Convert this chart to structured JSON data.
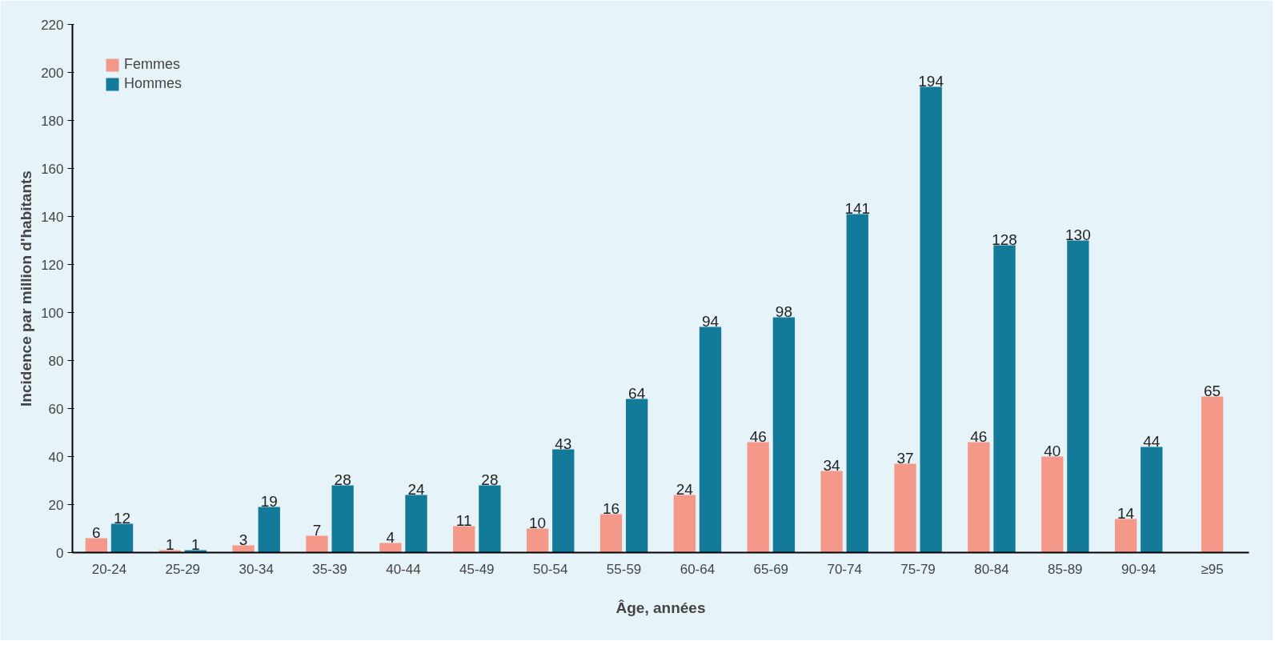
{
  "chart_data": {
    "type": "bar",
    "xlabel": "Âge, années",
    "ylabel": "Incidence par million d'habitants",
    "categories": [
      "20-24",
      "25-29",
      "30-34",
      "35-39",
      "40-44",
      "45-49",
      "50-54",
      "55-59",
      "60-64",
      "65-69",
      "70-74",
      "75-79",
      "80-84",
      "85-89",
      "90-94",
      "≥95"
    ],
    "series": [
      {
        "name": "Femmes",
        "color": "#f4998a",
        "values": [
          6,
          1,
          3,
          7,
          4,
          11,
          10,
          16,
          24,
          46,
          34,
          37,
          46,
          40,
          14,
          65
        ]
      },
      {
        "name": "Hommes",
        "color": "#137a9a",
        "values": [
          12,
          1,
          19,
          28,
          24,
          28,
          43,
          64,
          94,
          98,
          141,
          194,
          128,
          130,
          44,
          null
        ]
      }
    ],
    "ylim": [
      0,
      220
    ],
    "yticks": [
      0,
      20,
      40,
      60,
      80,
      100,
      120,
      140,
      160,
      180,
      200,
      220
    ],
    "grid": false,
    "legend": "top left",
    "data_labels": true
  }
}
